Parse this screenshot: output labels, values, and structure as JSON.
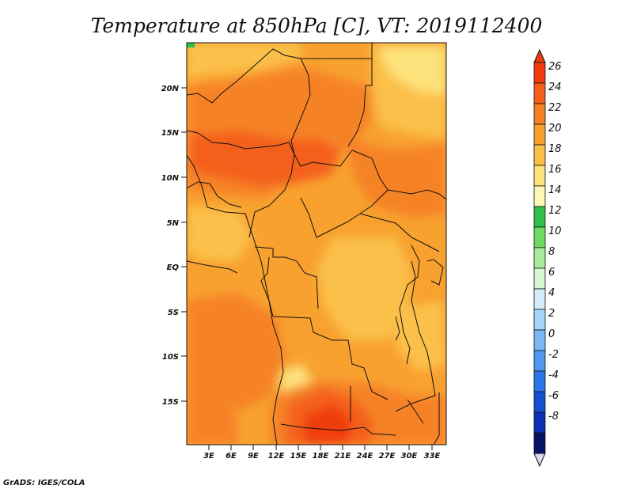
{
  "map": {
    "title": "Temperature at 850hPa [C], VT: 2019112400",
    "credit": "GrADS: IGES/COLA",
    "lon_labels": [
      "3E",
      "6E",
      "9E",
      "12E",
      "15E",
      "18E",
      "21E",
      "24E",
      "27E",
      "30E",
      "33E"
    ],
    "lat_labels": [
      "20N",
      "15N",
      "10N",
      "5N",
      "EQ",
      "5S",
      "10S",
      "15S"
    ]
  },
  "colorbar": {
    "labels": [
      "26",
      "24",
      "22",
      "20",
      "18",
      "16",
      "14",
      "12",
      "10",
      "8",
      "6",
      "4",
      "2",
      "0",
      "-2",
      "-4",
      "-6",
      "-8"
    ],
    "colors": [
      "#f03c0e",
      "#f4601b",
      "#f68227",
      "#f8a12f",
      "#fbc04a",
      "#fde27b",
      "#fff7b5",
      "#2ec04b",
      "#6fda62",
      "#a6ec9a",
      "#d6f8d2",
      "#d4ecfc",
      "#a6d7fb",
      "#7ab8f4",
      "#4f98ee",
      "#2c75e6",
      "#1552d0",
      "#0d31b4",
      "#0a1466"
    ],
    "under_color": "#d8d8f4"
  }
}
